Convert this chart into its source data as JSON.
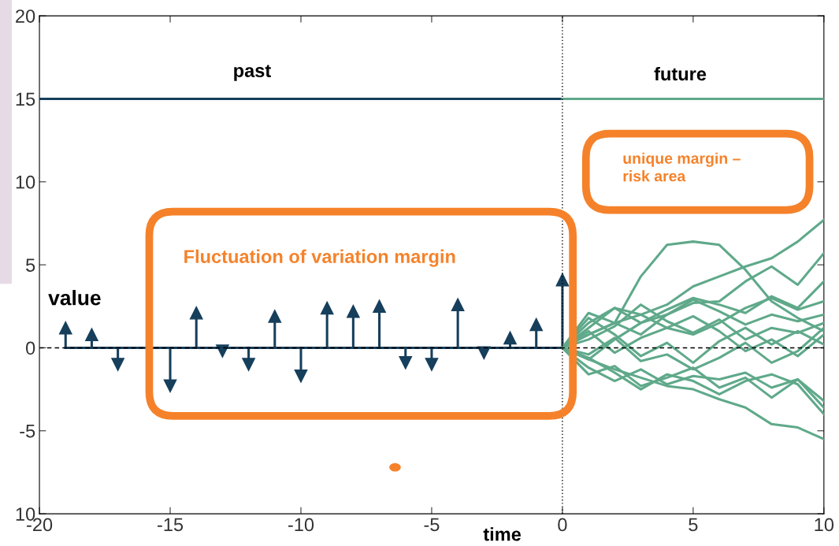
{
  "chart_data": {
    "type": "line",
    "xlabel": "time",
    "ylabel": "value",
    "x": [
      0,
      1,
      2,
      3,
      4,
      5,
      6,
      7,
      8,
      9,
      10
    ],
    "xlim": [
      -20,
      10
    ],
    "xticks": [
      -20,
      -15,
      -10,
      -5,
      0,
      5,
      10
    ],
    "ylim": [
      -10,
      20
    ],
    "yticks": [
      {
        "value": -10,
        "label": "10"
      },
      -5,
      0,
      5,
      10,
      15,
      20
    ],
    "annotations": [
      "past",
      "future",
      "Fluctuation of variation margin",
      "unique margin –\nrisk area"
    ],
    "ref_lines": [
      {
        "axis": "y",
        "value": 0,
        "line_style": "dashed",
        "color": "#000000"
      },
      {
        "axis": "x",
        "value": 0,
        "line_style": "dotted",
        "color": "#000000"
      }
    ],
    "series": [
      {
        "type": "lollipop",
        "marker": "triangle",
        "color": "#163f5c",
        "x": [
          -19,
          -18,
          -17,
          -16,
          -15,
          -14,
          -13,
          -12,
          -11,
          -10,
          -9,
          -8,
          -7,
          -6,
          -5,
          -4,
          -3,
          -2,
          -1,
          0
        ],
        "values": [
          1.2,
          0.8,
          -1.0,
          null,
          -2.3,
          2.1,
          -0.2,
          -1.0,
          1.9,
          -1.7,
          2.4,
          2.2,
          2.5,
          -0.9,
          -1.0,
          2.6,
          -0.3,
          0.6,
          1.4,
          4.1
        ]
      },
      {
        "color": "#163f5c",
        "x": [
          -19,
          0
        ],
        "values": [
          0,
          0
        ]
      },
      {
        "color": "#163f5c",
        "x": [
          -20,
          0
        ],
        "values": [
          15,
          15
        ]
      },
      {
        "color": "#5fa98a",
        "x": [
          0,
          10
        ],
        "values": [
          15,
          15
        ]
      },
      {
        "color": "#5fa98a",
        "values": [
          0,
          0.8,
          1.5,
          4.3,
          6.2,
          6.4,
          6.2,
          4.7,
          2.8,
          1.8,
          1.0
        ]
      },
      {
        "color": "#5fa98a",
        "values": [
          0,
          0.8,
          1.5,
          2.0,
          2.6,
          3.7,
          4.3,
          4.9,
          5.4,
          6.4,
          7.7
        ]
      },
      {
        "color": "#5fa98a",
        "values": [
          0,
          1.2,
          2.4,
          1.5,
          2.0,
          2.7,
          2.8,
          4.0,
          4.9,
          3.8,
          5.7
        ]
      },
      {
        "color": "#5fa98a",
        "values": [
          0,
          -0.7,
          0.5,
          1.5,
          2.3,
          3.0,
          2.6,
          2.1,
          3.1,
          2.4,
          4.0
        ]
      },
      {
        "color": "#5fa98a",
        "values": [
          0,
          1.5,
          2.4,
          2.0,
          1.2,
          0.8,
          1.5,
          2.4,
          3.0,
          2.3,
          2.8
        ]
      },
      {
        "color": "#5fa98a",
        "values": [
          0,
          2.1,
          1.5,
          0.8,
          2.0,
          2.9,
          2.2,
          1.4,
          2.0,
          1.6,
          2.0
        ]
      },
      {
        "color": "#5fa98a",
        "values": [
          0,
          0.5,
          1.3,
          2.6,
          1.6,
          0.9,
          1.7,
          0.5,
          1.2,
          0.9,
          1.5
        ]
      },
      {
        "color": "#5fa98a",
        "values": [
          0,
          1.0,
          -0.3,
          0.6,
          1.2,
          1.9,
          1.0,
          -0.2,
          0.5,
          -0.5,
          0.8
        ]
      },
      {
        "color": "#5fa98a",
        "values": [
          0,
          1.8,
          0.8,
          -0.5,
          0.3,
          -0.9,
          0.4,
          1.2,
          0.2,
          1.0,
          0.2
        ]
      },
      {
        "color": "#5fa98a",
        "values": [
          0,
          -1.2,
          -2.0,
          -1.3,
          -2.2,
          -1.7,
          -1.9,
          -1.5,
          -2.4,
          -1.9,
          -3.2
        ]
      },
      {
        "color": "#5fa98a",
        "values": [
          0,
          -0.6,
          -1.5,
          -2.5,
          -1.6,
          -2.0,
          -2.8,
          -2.0,
          -1.6,
          -2.2,
          -4.0
        ]
      },
      {
        "color": "#5fa98a",
        "values": [
          0,
          -0.7,
          -1.3,
          -1.8,
          -2.3,
          -2.5,
          -3.1,
          -3.6,
          -4.6,
          -4.8,
          -5.5
        ]
      },
      {
        "color": "#5fa98a",
        "values": [
          0,
          -1.6,
          -1.1,
          -2.3,
          -1.8,
          -1.2,
          -2.4,
          -1.8,
          -3.0,
          -1.9,
          -3.6
        ]
      },
      {
        "color": "#5fa98a",
        "values": [
          0,
          -0.4,
          0.6,
          -0.8,
          -0.4,
          -1.3,
          -0.6,
          0.3,
          -0.9,
          -0.2,
          1.2
        ]
      }
    ]
  }
}
